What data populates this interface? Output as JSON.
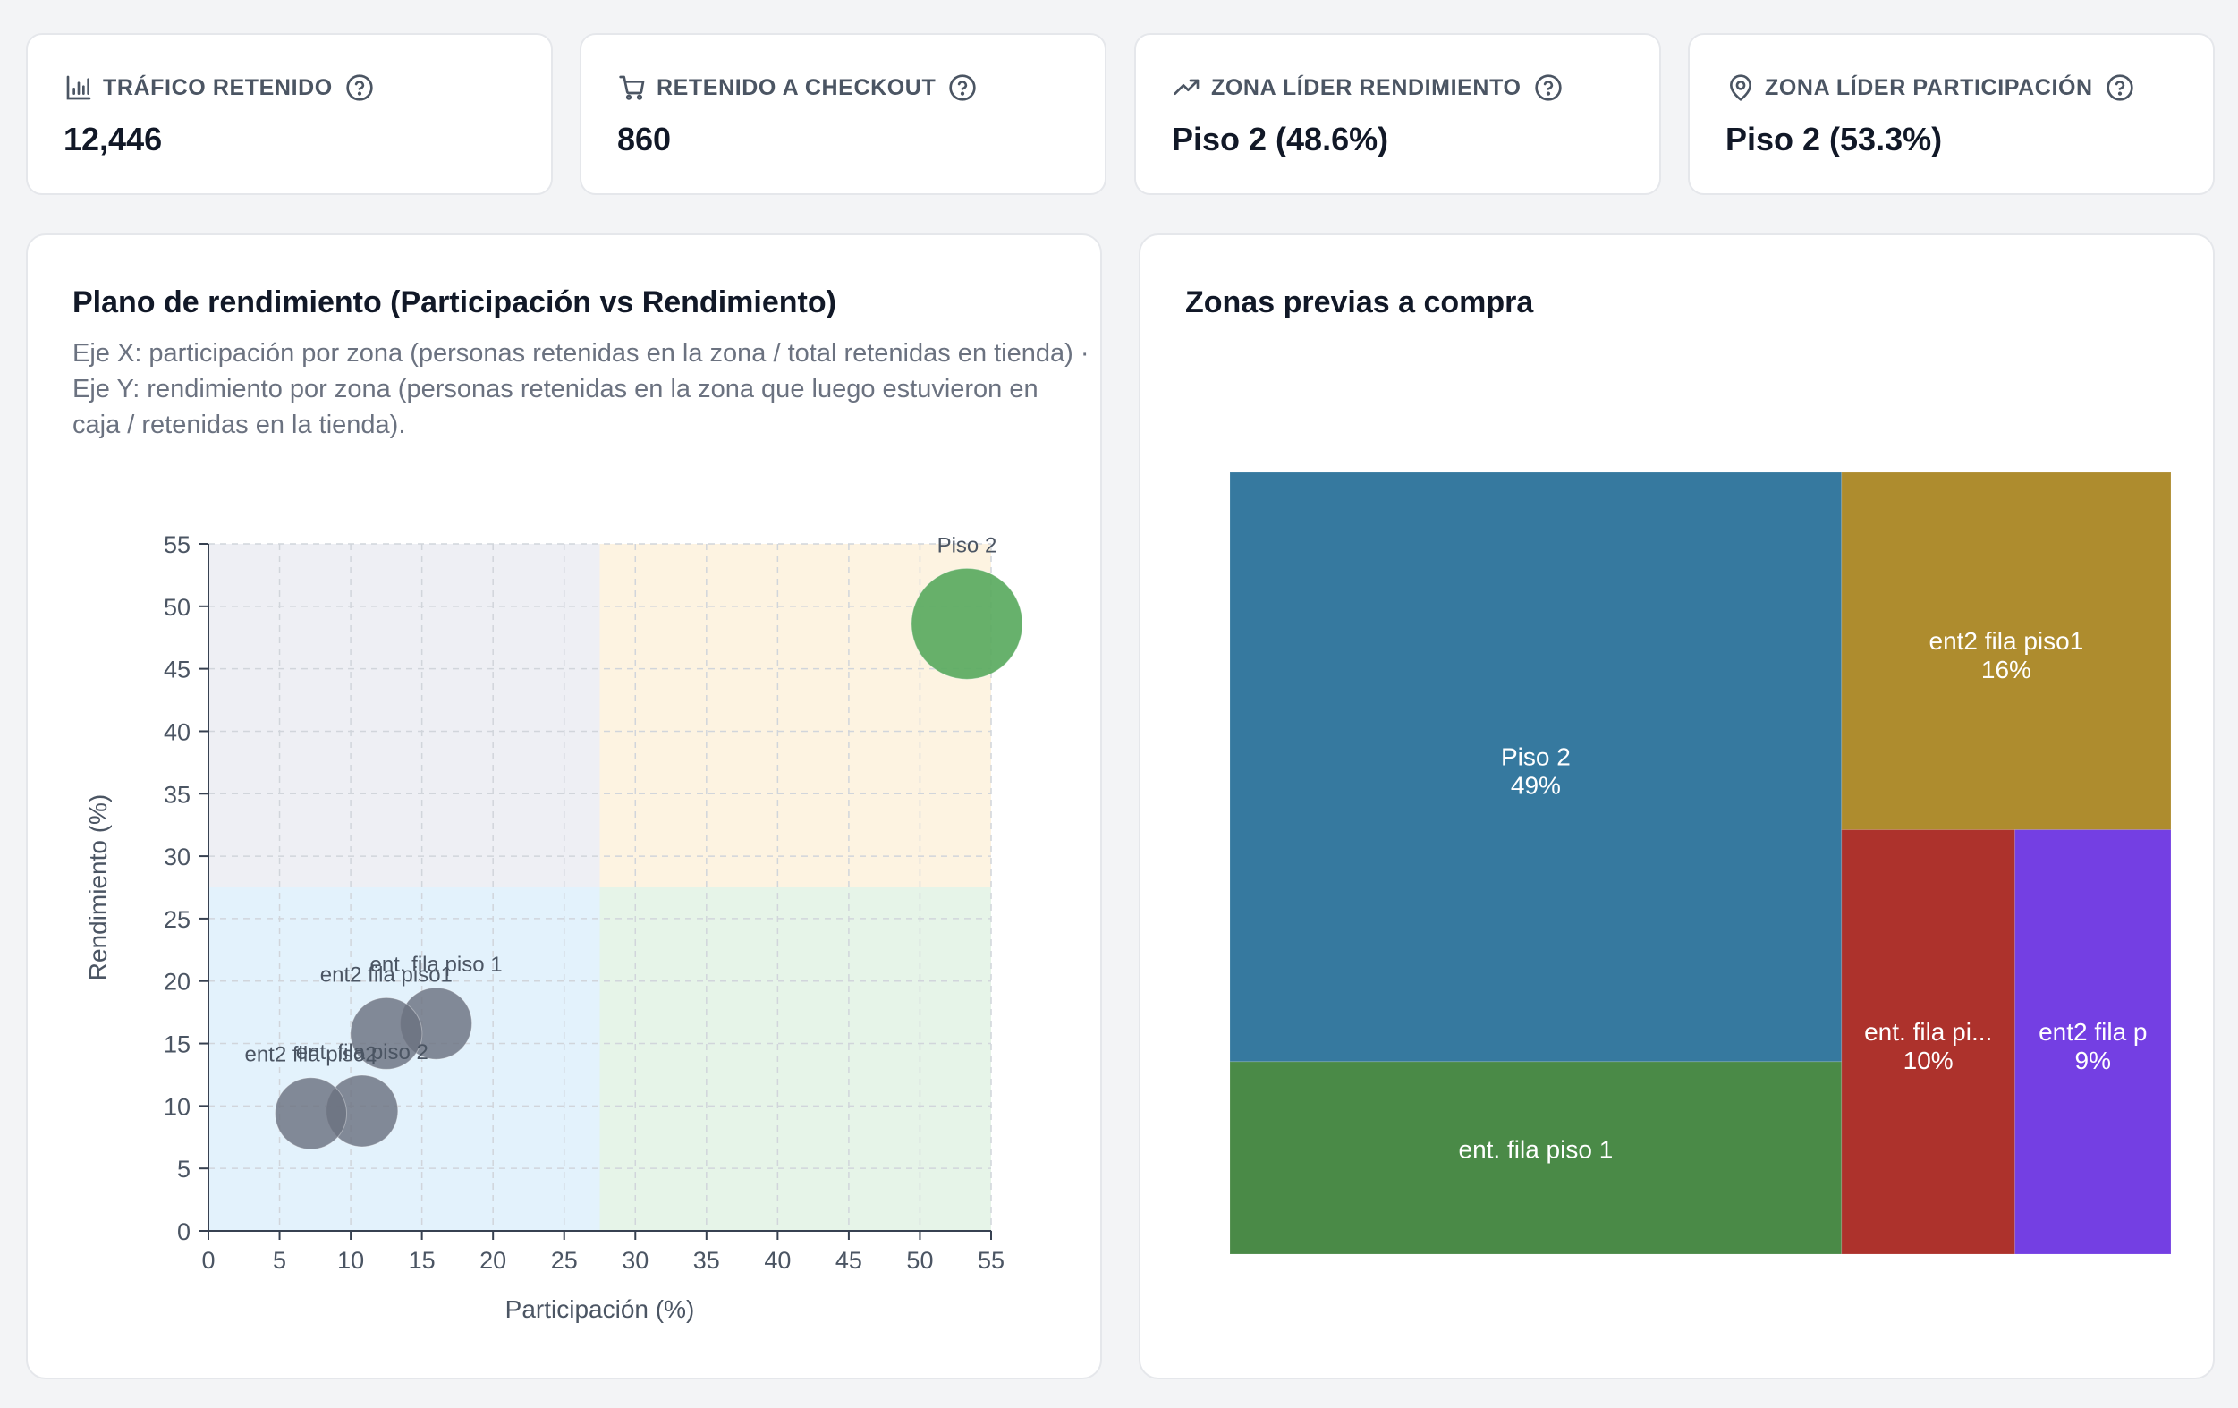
{
  "kpis": [
    {
      "label": "TRÁFICO RETENIDO",
      "value": "12,446",
      "icon": "bar-chart-icon"
    },
    {
      "label": "RETENIDO A CHECKOUT",
      "value": "860",
      "icon": "cart-icon"
    },
    {
      "label": "ZONA LÍDER RENDIMIENTO",
      "value": "Piso 2 (48.6%)",
      "icon": "trending-up-icon"
    },
    {
      "label": "ZONA LÍDER PARTICIPACIÓN",
      "value": "Piso 2 (53.3%)",
      "icon": "map-pin-icon"
    }
  ],
  "scatter_panel": {
    "title": "Plano de rendimiento (Participación vs Rendimiento)",
    "description": "Eje X: participación por zona (personas retenidas en la zona / total retenidas en tienda) · Eje Y: rendimiento por zona (personas retenidas en la zona que luego estuvieron en caja / retenidas en la tienda)."
  },
  "treemap_panel": {
    "title": "Zonas previas a compra"
  },
  "colors": {
    "quadrant_top_left": "#eeeff4",
    "quadrant_top_right": "#fdf3e1",
    "quadrant_bottom_left": "#e3f2fc",
    "quadrant_bottom_right": "#e6f4e8",
    "leader_bubble": "#5aaa5f",
    "other_bubble": "#6b7280"
  },
  "chart_data": [
    {
      "type": "scatter",
      "title": "Plano de rendimiento (Participación vs Rendimiento)",
      "xlabel": "Participación (%)",
      "ylabel": "Rendimiento (%)",
      "xlim": [
        0,
        55
      ],
      "ylim": [
        0,
        55
      ],
      "xticks": [
        0,
        5,
        10,
        15,
        20,
        25,
        30,
        35,
        40,
        45,
        50,
        55
      ],
      "yticks": [
        0,
        5,
        10,
        15,
        20,
        25,
        30,
        35,
        40,
        45,
        50,
        55
      ],
      "grid": true,
      "quadrant_split": {
        "x": 27.5,
        "y": 27.5
      },
      "points": [
        {
          "label": "Piso 2",
          "x": 53.3,
          "y": 48.6,
          "highlight": true
        },
        {
          "label": "ent. fila piso 1",
          "x": 16.0,
          "y": 16.6,
          "highlight": false
        },
        {
          "label": "ent2 fila piso1",
          "x": 12.5,
          "y": 15.8,
          "highlight": false
        },
        {
          "label": "ent. fila piso 2",
          "x": 10.8,
          "y": 9.6,
          "highlight": false
        },
        {
          "label": "ent2 fila piso2",
          "x": 7.2,
          "y": 9.4,
          "highlight": false
        }
      ]
    },
    {
      "type": "treemap",
      "title": "Zonas previas a compra",
      "cells": [
        {
          "label": "Piso 2",
          "pct": "49%",
          "value": 49,
          "color": "#36799f"
        },
        {
          "label": "ent. fila piso 1",
          "pct": "",
          "value": 16,
          "color": "#4a8a47"
        },
        {
          "label": "ent2 fila piso1",
          "pct": "16%",
          "value": 16,
          "color": "#ae8c2e"
        },
        {
          "label": "ent. fila pi...",
          "pct": "10%",
          "value": 10,
          "color": "#ad322c"
        },
        {
          "label": "ent2 fila p",
          "pct": "9%",
          "value": 9,
          "color": "#743fe3"
        }
      ]
    }
  ]
}
